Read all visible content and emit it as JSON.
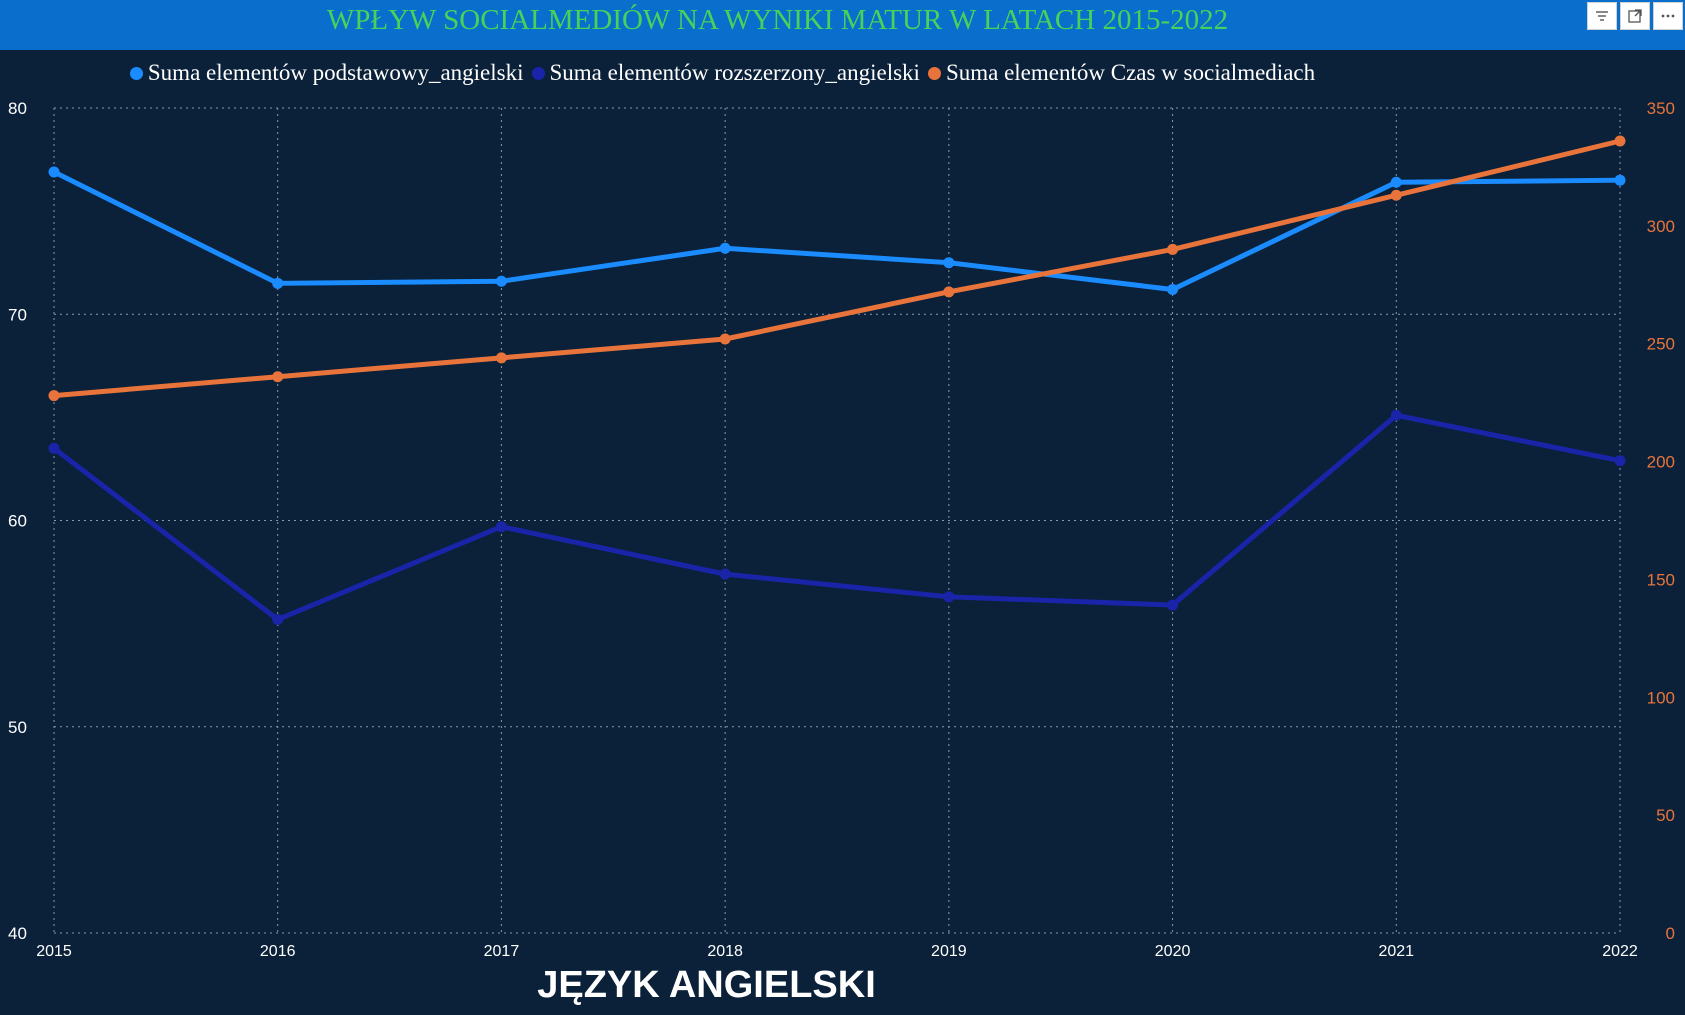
{
  "header": {
    "title": "WPŁYW SOCIALMEDIÓW NA WYNIKI MATUR W LATACH 2015-2022"
  },
  "toolbar": {
    "filter_icon": "filter-icon",
    "focus_icon": "focus-mode-icon",
    "more_icon": "more-options-icon"
  },
  "colors": {
    "title_bar": "#0a6ecc",
    "title_text": "#45d35a",
    "background": "#0a2139",
    "series_podstawowy": "#1a8cff",
    "series_rozszerzony": "#1a24a8",
    "series_czas": "#e8743b"
  },
  "footer": {
    "title": "JĘZYK ANGIELSKI"
  },
  "chart_data": {
    "type": "line",
    "x": [
      "2015",
      "2016",
      "2017",
      "2018",
      "2019",
      "2020",
      "2021",
      "2022"
    ],
    "series": [
      {
        "name": "Suma elementów podstawowy_angielski",
        "axis": "left",
        "color": "#1a8cff",
        "values": [
          76.9,
          71.5,
          71.6,
          73.2,
          72.5,
          71.2,
          76.4,
          76.5
        ]
      },
      {
        "name": "Suma elementów rozszerzony_angielski",
        "axis": "left",
        "color": "#1a24a8",
        "values": [
          63.5,
          55.2,
          59.7,
          57.4,
          56.3,
          55.9,
          65.1,
          62.9
        ]
      },
      {
        "name": "Suma elementów Czas w socialmediach",
        "axis": "right",
        "color": "#e8743b",
        "values": [
          228,
          236,
          244,
          252,
          272,
          290,
          313,
          336
        ]
      }
    ],
    "y_left": {
      "min": 40,
      "max": 80,
      "ticks": [
        "40",
        "50",
        "60",
        "70",
        "80"
      ]
    },
    "y_right": {
      "min": 0,
      "max": 350,
      "ticks": [
        "0",
        "50",
        "100",
        "150",
        "200",
        "250",
        "300",
        "350"
      ]
    },
    "legend_position": "top",
    "grid": true
  }
}
